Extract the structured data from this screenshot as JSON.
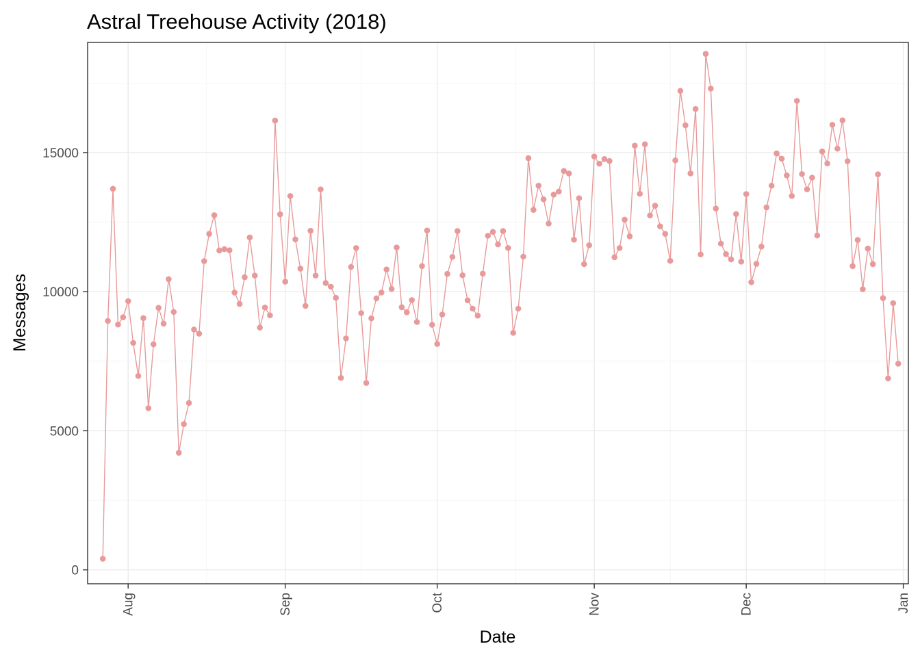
{
  "chart_data": {
    "type": "line",
    "title": "Astral Treehouse Activity (2018)",
    "xlabel": "Date",
    "ylabel": "Messages",
    "color": "#e89a9a",
    "markers": true,
    "grid": true,
    "legend": "none",
    "x_range": [
      "2018-07-24",
      "2019-01-02"
    ],
    "ylim": [
      -500,
      18960
    ],
    "x_ticks": [
      {
        "date": "2018-08-01",
        "label": "Aug"
      },
      {
        "date": "2018-09-01",
        "label": "Sep"
      },
      {
        "date": "2018-10-01",
        "label": "Oct"
      },
      {
        "date": "2018-11-01",
        "label": "Nov"
      },
      {
        "date": "2018-12-01",
        "label": "Dec"
      },
      {
        "date": "2019-01-01",
        "label": "Jan"
      }
    ],
    "y_ticks": [
      0,
      5000,
      10000,
      15000
    ],
    "start_date": "2018-07-27",
    "values": [
      400,
      8950,
      13700,
      8820,
      9080,
      9660,
      8160,
      6970,
      9050,
      5810,
      8110,
      9420,
      8850,
      10450,
      9270,
      4210,
      5240,
      6000,
      8640,
      8490,
      11100,
      12080,
      12750,
      11480,
      11530,
      11490,
      9970,
      9560,
      10520,
      11950,
      10580,
      8710,
      9430,
      9150,
      16150,
      12780,
      10360,
      13440,
      11880,
      10830,
      9490,
      12190,
      10580,
      13680,
      10310,
      10180,
      9780,
      6900,
      8320,
      10890,
      11570,
      9230,
      6720,
      9040,
      9760,
      9970,
      10800,
      10100,
      11590,
      9440,
      9260,
      9700,
      8910,
      10920,
      12200,
      8810,
      8120,
      9180,
      10640,
      11250,
      12180,
      10590,
      9690,
      9390,
      9140,
      10650,
      12010,
      12150,
      11700,
      12180,
      11570,
      8520,
      9390,
      11260,
      14800,
      12940,
      13810,
      13320,
      12450,
      13490,
      13600,
      14340,
      14250,
      11870,
      13360,
      10990,
      11670,
      14860,
      14600,
      14770,
      14700,
      11240,
      11570,
      12590,
      11990,
      15250,
      13520,
      15300,
      12740,
      13090,
      12350,
      12080,
      11110,
      14720,
      17220,
      15980,
      14250,
      16570,
      11340,
      18550,
      17300,
      12990,
      11730,
      11350,
      11160,
      12790,
      11080,
      13510,
      10340,
      11000,
      11620,
      13030,
      13810,
      14970,
      14780,
      14180,
      13440,
      16860,
      14230,
      13680,
      14100,
      12020,
      15040,
      14610,
      16000,
      15140,
      16160,
      14690,
      10920,
      11860,
      10090,
      11550,
      10990,
      14220,
      9770,
      6880,
      9590,
      7410
    ]
  }
}
